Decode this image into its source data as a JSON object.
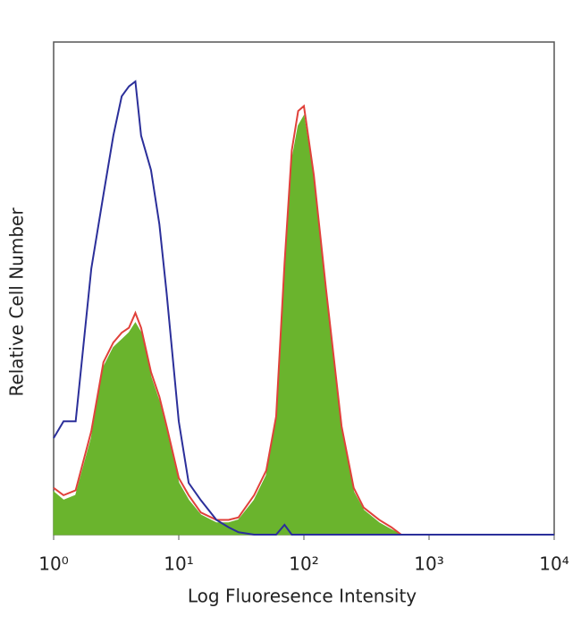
{
  "chart_data": {
    "type": "histogram-overlay",
    "x_label": "Log Fluoresence Intensity",
    "y_label": "Relative Cell Number",
    "log_x": true,
    "xlim": [
      1,
      10000
    ],
    "xticks": [
      {
        "value": 1,
        "label": "10⁰"
      },
      {
        "value": 10,
        "label": "10¹"
      },
      {
        "value": 100,
        "label": "10²"
      },
      {
        "value": 1000,
        "label": "10³"
      },
      {
        "value": 10000,
        "label": "10⁴"
      }
    ],
    "ylim": [
      0,
      100
    ],
    "x": [
      1,
      1.2,
      1.5,
      2,
      2.5,
      3,
      3.5,
      4,
      4.5,
      5,
      6,
      7,
      8,
      10,
      12,
      15,
      20,
      25,
      30,
      40,
      50,
      60,
      70,
      80,
      90,
      100,
      120,
      150,
      200,
      250,
      300,
      400,
      500,
      600,
      1000,
      10000
    ],
    "series": [
      {
        "color": "#6ab42d",
        "fill": true,
        "values": [
          8.7,
          7,
          8,
          19.6,
          34,
          38,
          39.6,
          41,
          43,
          41,
          32,
          27,
          21,
          10.5,
          7,
          4,
          2.4,
          2.4,
          3,
          7,
          12,
          23,
          54,
          76,
          83,
          85,
          72,
          49,
          21,
          8.7,
          5,
          2.4,
          1,
          0,
          0,
          0
        ]
      },
      {
        "color": "#e0413a",
        "fill": false,
        "values": [
          9.5,
          8,
          9,
          21,
          35,
          39,
          41,
          42,
          45,
          42,
          33,
          28,
          22,
          11.5,
          8,
          4.5,
          3,
          3,
          3.5,
          8,
          13,
          24,
          55,
          78,
          86,
          87,
          73,
          50,
          22,
          9.5,
          5.5,
          3,
          1.5,
          0,
          0,
          0
        ]
      },
      {
        "color": "#2b2f9a",
        "fill": false,
        "values": [
          19.6,
          23,
          23,
          54,
          69,
          81,
          89,
          91,
          92,
          81,
          74,
          63,
          49,
          23,
          10.5,
          7,
          3,
          1.5,
          0.5,
          0,
          0,
          0,
          2,
          0,
          0,
          0,
          0,
          0,
          0,
          0,
          0,
          0,
          0,
          0,
          0,
          0
        ]
      }
    ]
  }
}
